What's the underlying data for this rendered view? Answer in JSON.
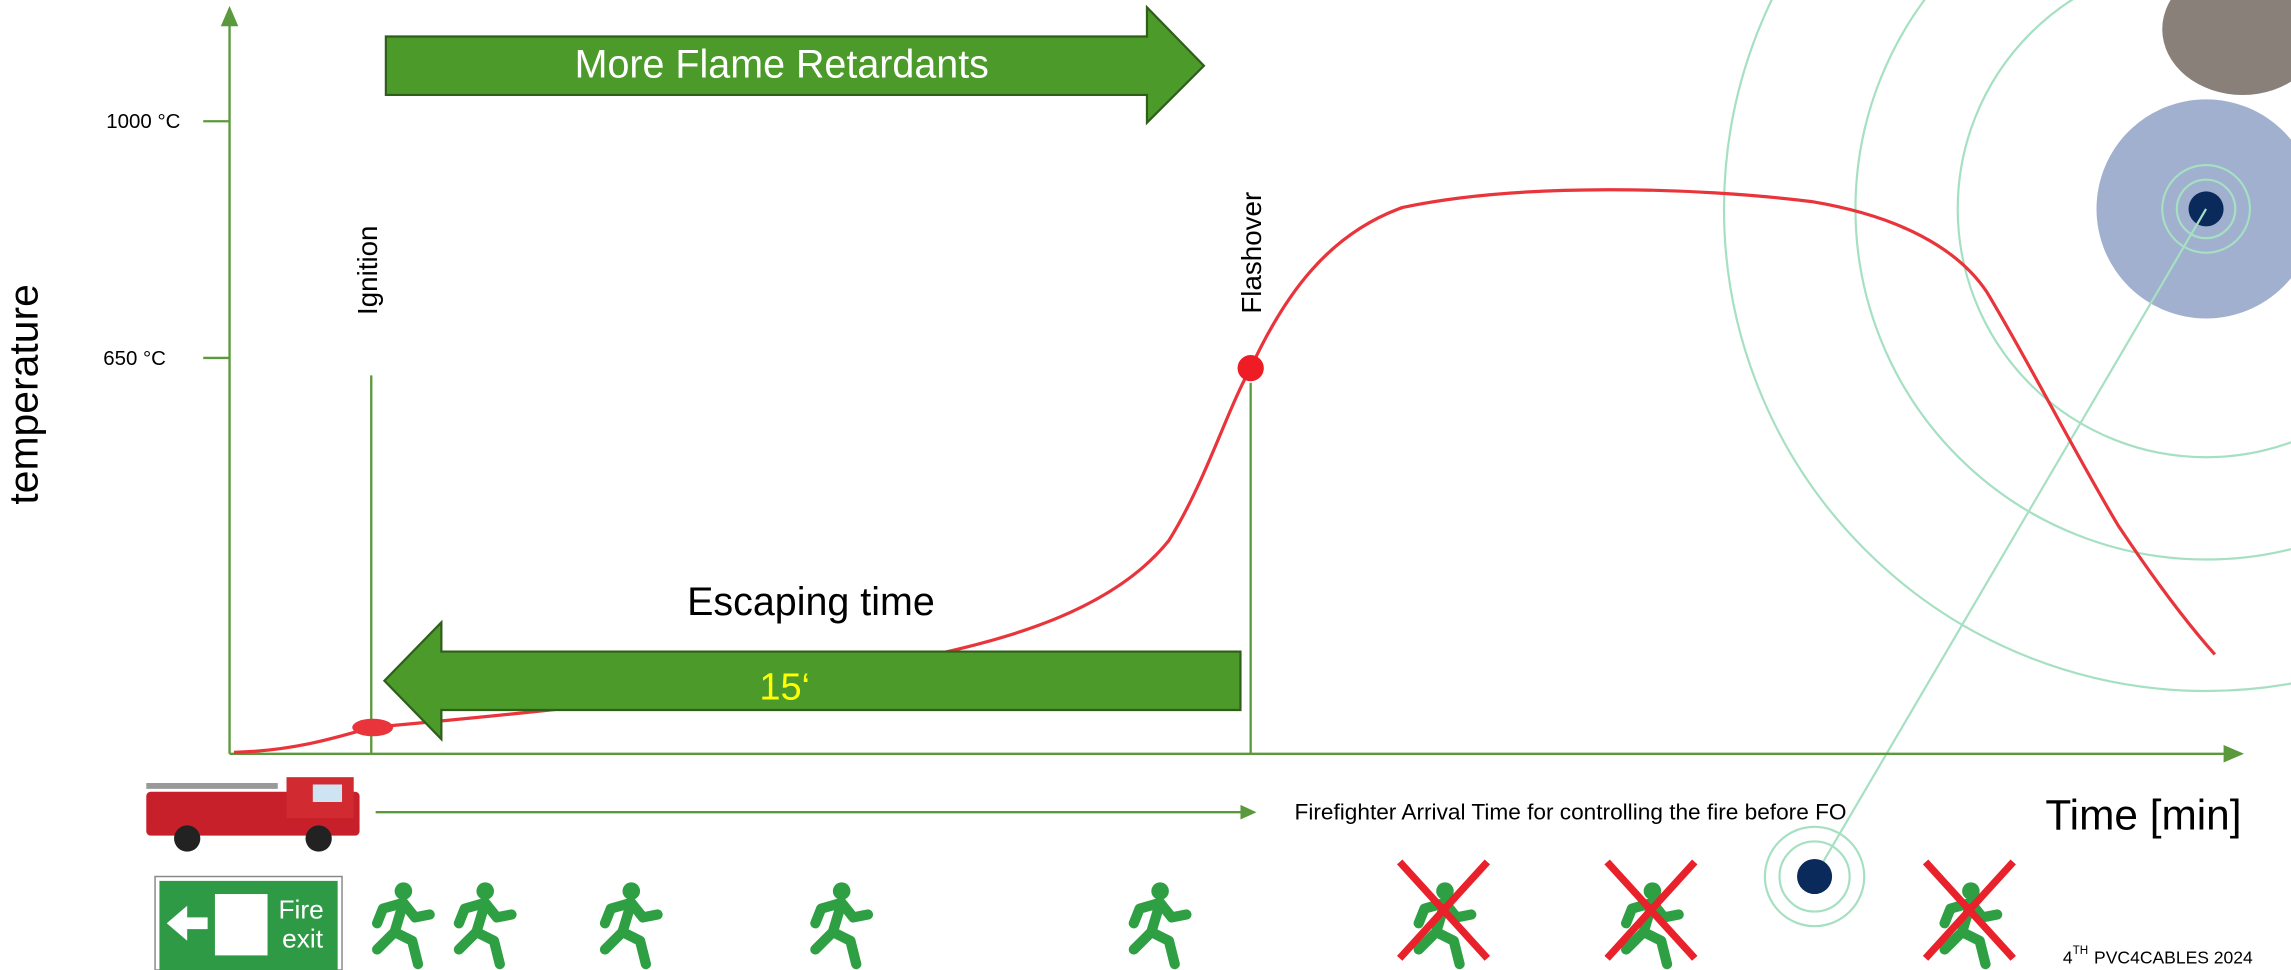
{
  "axes": {
    "y_label": "temperature",
    "x_label": "Time [min]",
    "y_ticks": [
      "1000 °C",
      "650 °C"
    ]
  },
  "arrows": {
    "more_flame_retardants": "More Flame Retardants",
    "escaping_time": {
      "title": "Escaping time",
      "duration": "15‘"
    }
  },
  "events": {
    "ignition": "Ignition",
    "flashover": "Flashover"
  },
  "firefighter_note": "Firefighter Arrival Time for controlling the fire before FO",
  "sign": {
    "top": "Fire",
    "bottom": "exit"
  },
  "footer": {
    "number": "4",
    "superscript": "TH",
    "text": "PVC4CABLES 2024"
  }
}
